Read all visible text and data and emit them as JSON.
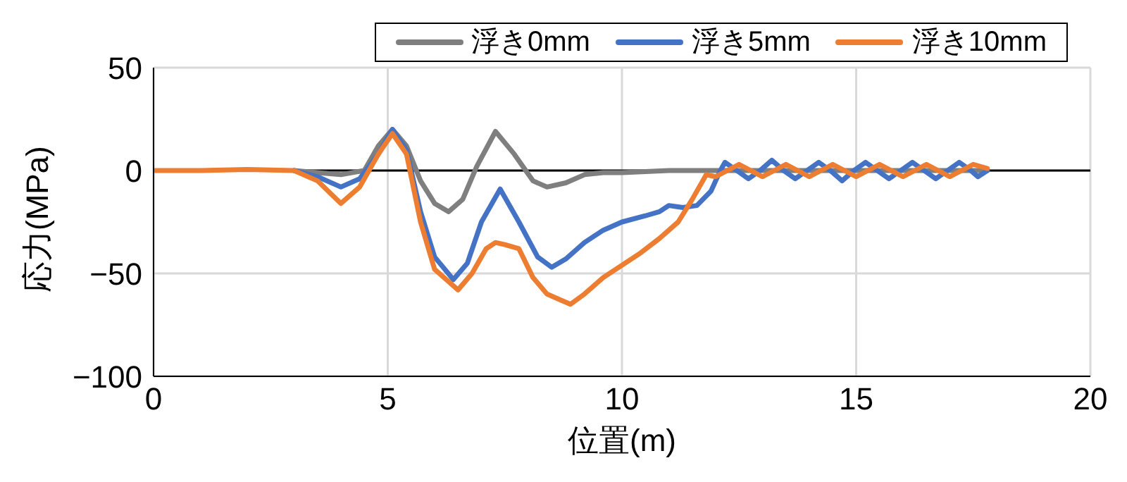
{
  "chart_data": {
    "type": "line",
    "xlabel": "位置(m)",
    "ylabel": "応力(MPa)",
    "xlim": [
      0,
      20
    ],
    "xticks": [
      0,
      5,
      10,
      15,
      20
    ],
    "ylim": [
      -100,
      50
    ],
    "yticks": [
      -100,
      -50,
      0,
      50
    ],
    "grid": true,
    "legend": "top right",
    "marker": "none",
    "line_style": "solid",
    "ref_lines": [
      {
        "axis": "y",
        "value": 0,
        "color": "#000000"
      }
    ],
    "series": [
      {
        "name": "浮き0mm",
        "color": "#7f7f7f",
        "x": [
          3,
          3.5,
          4,
          4.5,
          4.8,
          5.1,
          5.4,
          5.7,
          6.0,
          6.3,
          6.6,
          6.9,
          7.3,
          7.7,
          8.1,
          8.4,
          8.8,
          9.2,
          9.6,
          10,
          11,
          12,
          13,
          14,
          15,
          16,
          17,
          17.8
        ],
        "values": [
          0,
          -1,
          -2,
          0,
          12,
          20,
          12,
          -5,
          -16,
          -20,
          -14,
          2,
          19,
          8,
          -5,
          -8,
          -6,
          -2,
          -1,
          -1,
          0,
          0,
          0,
          0,
          0,
          0,
          0,
          0
        ]
      },
      {
        "name": "浮き5mm",
        "color": "#4472c4",
        "x": [
          3,
          3.5,
          4.0,
          4.4,
          4.8,
          5.1,
          5.4,
          5.7,
          6.0,
          6.4,
          6.7,
          7.0,
          7.4,
          7.8,
          8.2,
          8.5,
          8.8,
          9.2,
          9.6,
          10.0,
          10.5,
          10.8,
          11.0,
          11.3,
          11.6,
          11.9,
          12.1,
          12.2,
          12.45,
          12.7,
          12.95,
          13.2,
          13.45,
          13.7,
          13.95,
          14.2,
          14.45,
          14.7,
          14.95,
          15.2,
          15.45,
          15.7,
          15.95,
          16.2,
          16.45,
          16.7,
          16.95,
          17.2,
          17.45,
          17.6,
          17.8
        ],
        "values": [
          0,
          -3,
          -8,
          -4,
          8,
          20,
          10,
          -20,
          -42,
          -53,
          -45,
          -25,
          -9,
          -25,
          -42,
          -47,
          -43,
          -35,
          -29,
          -25,
          -22,
          -20,
          -17,
          -18,
          -17,
          -10,
          0,
          4,
          0,
          -4,
          0,
          5,
          0,
          -4,
          0,
          4,
          0,
          -5,
          0,
          4,
          0,
          -4,
          0,
          4,
          0,
          -4,
          0,
          4,
          0,
          -3,
          0
        ]
      },
      {
        "name": "浮き10mm",
        "color": "#ed7d31",
        "x": [
          0,
          1,
          2,
          3,
          3.5,
          4.0,
          4.4,
          4.8,
          5.1,
          5.4,
          5.7,
          6.0,
          6.5,
          6.8,
          7.1,
          7.3,
          7.5,
          7.8,
          8.1,
          8.4,
          8.7,
          8.9,
          9.2,
          9.6,
          10.0,
          10.4,
          10.8,
          11.2,
          11.5,
          11.8,
          12.0,
          12.25,
          12.5,
          12.75,
          13.0,
          13.25,
          13.5,
          13.75,
          14.0,
          14.25,
          14.5,
          14.75,
          15.0,
          15.25,
          15.5,
          15.75,
          16.0,
          16.25,
          16.5,
          16.75,
          17.0,
          17.25,
          17.5,
          17.8
        ],
        "values": [
          0,
          0,
          0.5,
          0,
          -5,
          -16,
          -8,
          8,
          18,
          8,
          -25,
          -48,
          -58,
          -50,
          -38,
          -35,
          -36,
          -38,
          -52,
          -60,
          -63,
          -65,
          -60,
          -52,
          -46,
          -40,
          -33,
          -25,
          -14,
          -2,
          -3,
          0,
          3,
          0,
          -3,
          0,
          3,
          0,
          -3,
          0,
          3,
          0,
          -3,
          0,
          3,
          0,
          -3,
          0,
          3,
          0,
          -3,
          0,
          3,
          1
        ]
      }
    ]
  }
}
